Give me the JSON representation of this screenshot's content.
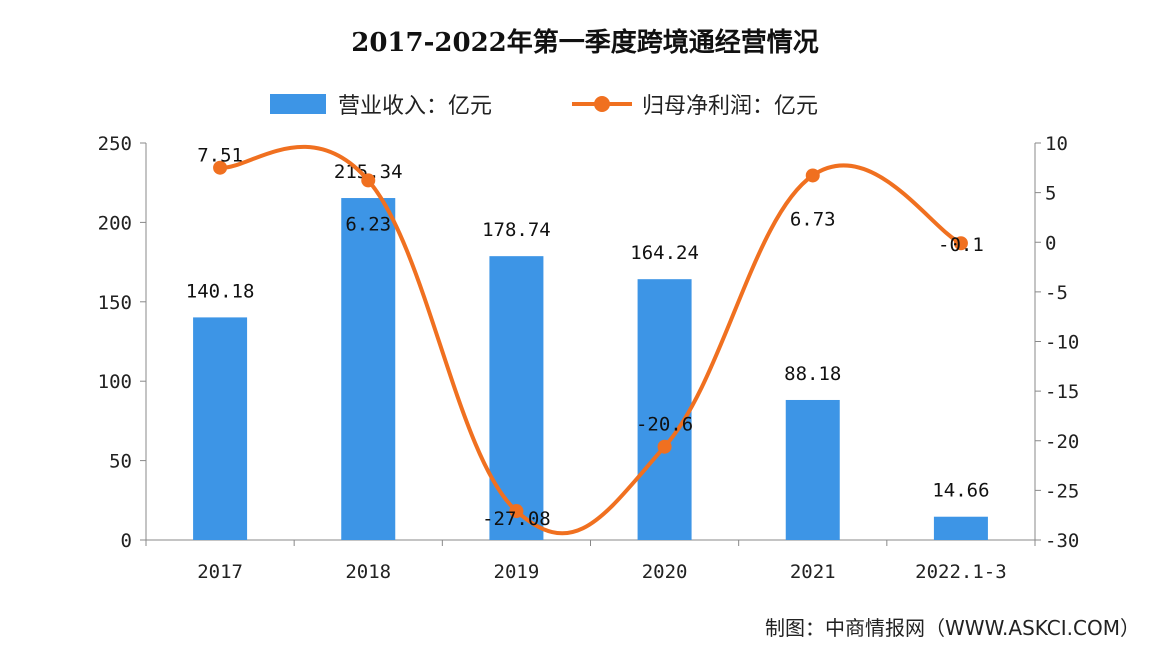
{
  "chart_data": {
    "type": "bar+line",
    "title": "2017-2022年第一季度跨境通经营情况",
    "categories": [
      "2017",
      "2018",
      "2019",
      "2020",
      "2021",
      "2022.1-3"
    ],
    "series": [
      {
        "name": "营业收入：亿元",
        "type": "bar",
        "axis": "left",
        "color": "#3d95e6",
        "values": [
          140.18,
          215.34,
          178.74,
          164.24,
          88.18,
          14.66
        ]
      },
      {
        "name": "归母净利润：亿元",
        "type": "line",
        "axis": "right",
        "color": "#f07020",
        "smooth": true,
        "values": [
          7.51,
          6.23,
          -27.08,
          -20.6,
          6.73,
          -0.1
        ]
      }
    ],
    "left_axis": {
      "ylim": [
        0,
        250
      ],
      "ticks": [
        0,
        50,
        100,
        150,
        200,
        250
      ]
    },
    "right_axis": {
      "ylim": [
        -30,
        10
      ],
      "ticks": [
        -30,
        -25,
        -20,
        -15,
        -10,
        -5,
        0,
        5,
        10
      ]
    },
    "grid": false,
    "legend": "top"
  },
  "source": "制图：中商情报网（WWW.ASKCI.COM）"
}
